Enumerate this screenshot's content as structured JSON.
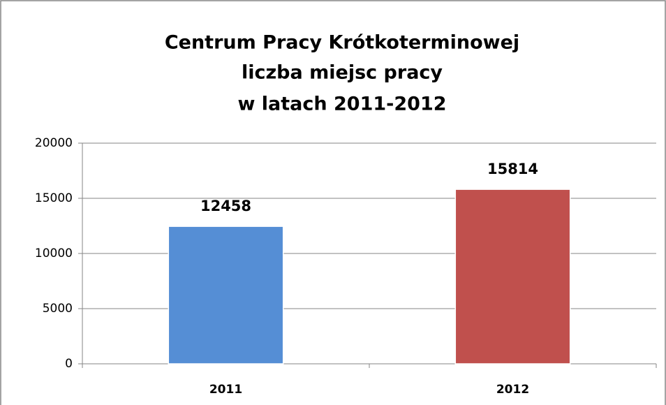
{
  "chart_data": {
    "type": "bar",
    "title": [
      "Centrum Pracy Krótkoterminowej",
      "liczba miejsc pracy",
      "w latach 2011-2012"
    ],
    "categories": [
      "2011",
      "2012"
    ],
    "values": [
      12458,
      15814
    ],
    "colors": [
      "#558ed5",
      "#c0504d"
    ],
    "ylim": [
      0,
      20000
    ],
    "yticks": [
      0,
      5000,
      10000,
      15000,
      20000
    ],
    "grid": true
  }
}
